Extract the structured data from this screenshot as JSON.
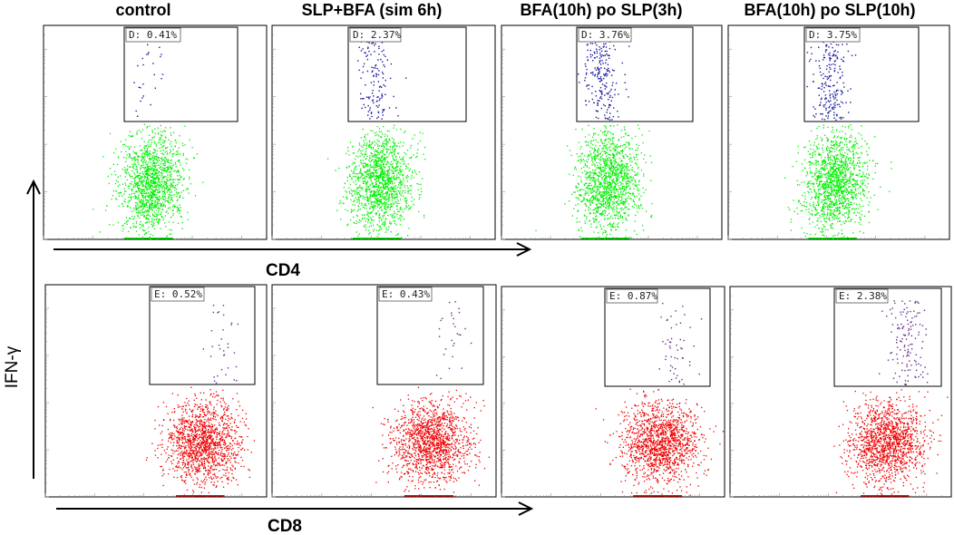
{
  "chart_data": {
    "type": "scatter",
    "column_titles": [
      "control",
      "SLP+BFA (sim 6h)",
      "BFA(10h) po SLP(3h)",
      "BFA(10h) po SLP(10h)"
    ],
    "y_axis_label": "IFN-γ",
    "rows": [
      {
        "x_axis_label": "CD4",
        "gate_prefix": "D",
        "population_color": "#00ee00",
        "gated_color": "#1a1aa0",
        "panels": [
          {
            "gate_label": "D: 0.41%",
            "gated_percent": 0.41
          },
          {
            "gate_label": "D: 2.37%",
            "gated_percent": 2.37
          },
          {
            "gate_label": "D: 3.76%",
            "gated_percent": 3.76
          },
          {
            "gate_label": "D: 3.75%",
            "gated_percent": 3.75
          }
        ]
      },
      {
        "x_axis_label": "CD8",
        "gate_prefix": "E",
        "population_color": "#ee0000",
        "gated_color": "#6a2d8a",
        "panels": [
          {
            "gate_label": "E: 0.52%",
            "gated_percent": 0.52
          },
          {
            "gate_label": "E: 0.43%",
            "gated_percent": 0.43
          },
          {
            "gate_label": "E: 0.87%",
            "gated_percent": 0.87
          },
          {
            "gate_label": "E: 2.38%",
            "gated_percent": 2.38
          }
        ]
      }
    ],
    "x_scale": "log",
    "y_scale": "log",
    "grid": false,
    "legend": "none"
  }
}
